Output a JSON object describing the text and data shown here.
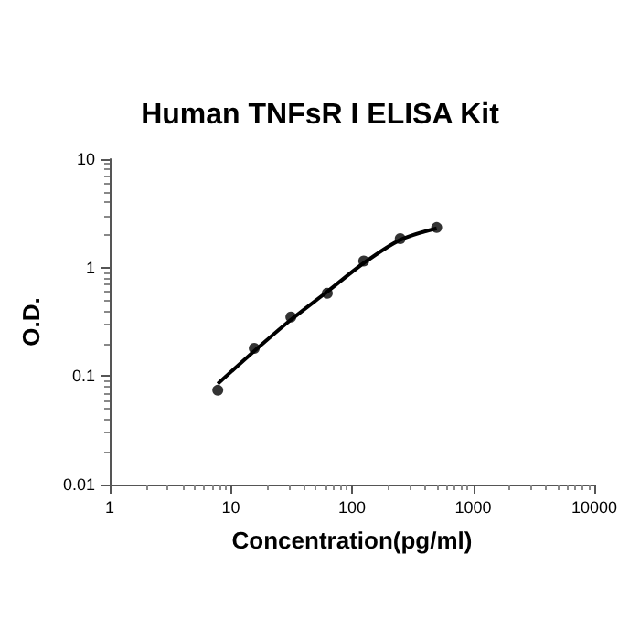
{
  "chart_data": {
    "type": "scatter",
    "title": "Human TNFsR I ELISA Kit",
    "xlabel": "Concentration(pg/ml)",
    "ylabel": "O.D.",
    "log": "xy",
    "grid": false,
    "marker": "circle",
    "xlim": [
      1,
      10000
    ],
    "xticks": [
      1,
      10,
      100,
      1000,
      10000
    ],
    "ylim": [
      0.01,
      10
    ],
    "yticks": [
      0.01,
      0.1,
      1,
      10
    ],
    "series": [
      {
        "color": "#000000",
        "x": [
          7.8,
          15.6,
          31.3,
          62.5,
          125,
          250,
          500
        ],
        "values": [
          0.074,
          0.18,
          0.35,
          0.58,
          1.15,
          1.85,
          2.34
        ]
      },
      {
        "type": "line",
        "color": "#000000",
        "line_style": "solid",
        "marker": "none",
        "x": [
          7.8,
          15.6,
          31.3,
          62.5,
          125,
          250,
          500
        ],
        "values": [
          0.085,
          0.17,
          0.33,
          0.6,
          1.1,
          1.8,
          2.3
        ]
      }
    ]
  }
}
